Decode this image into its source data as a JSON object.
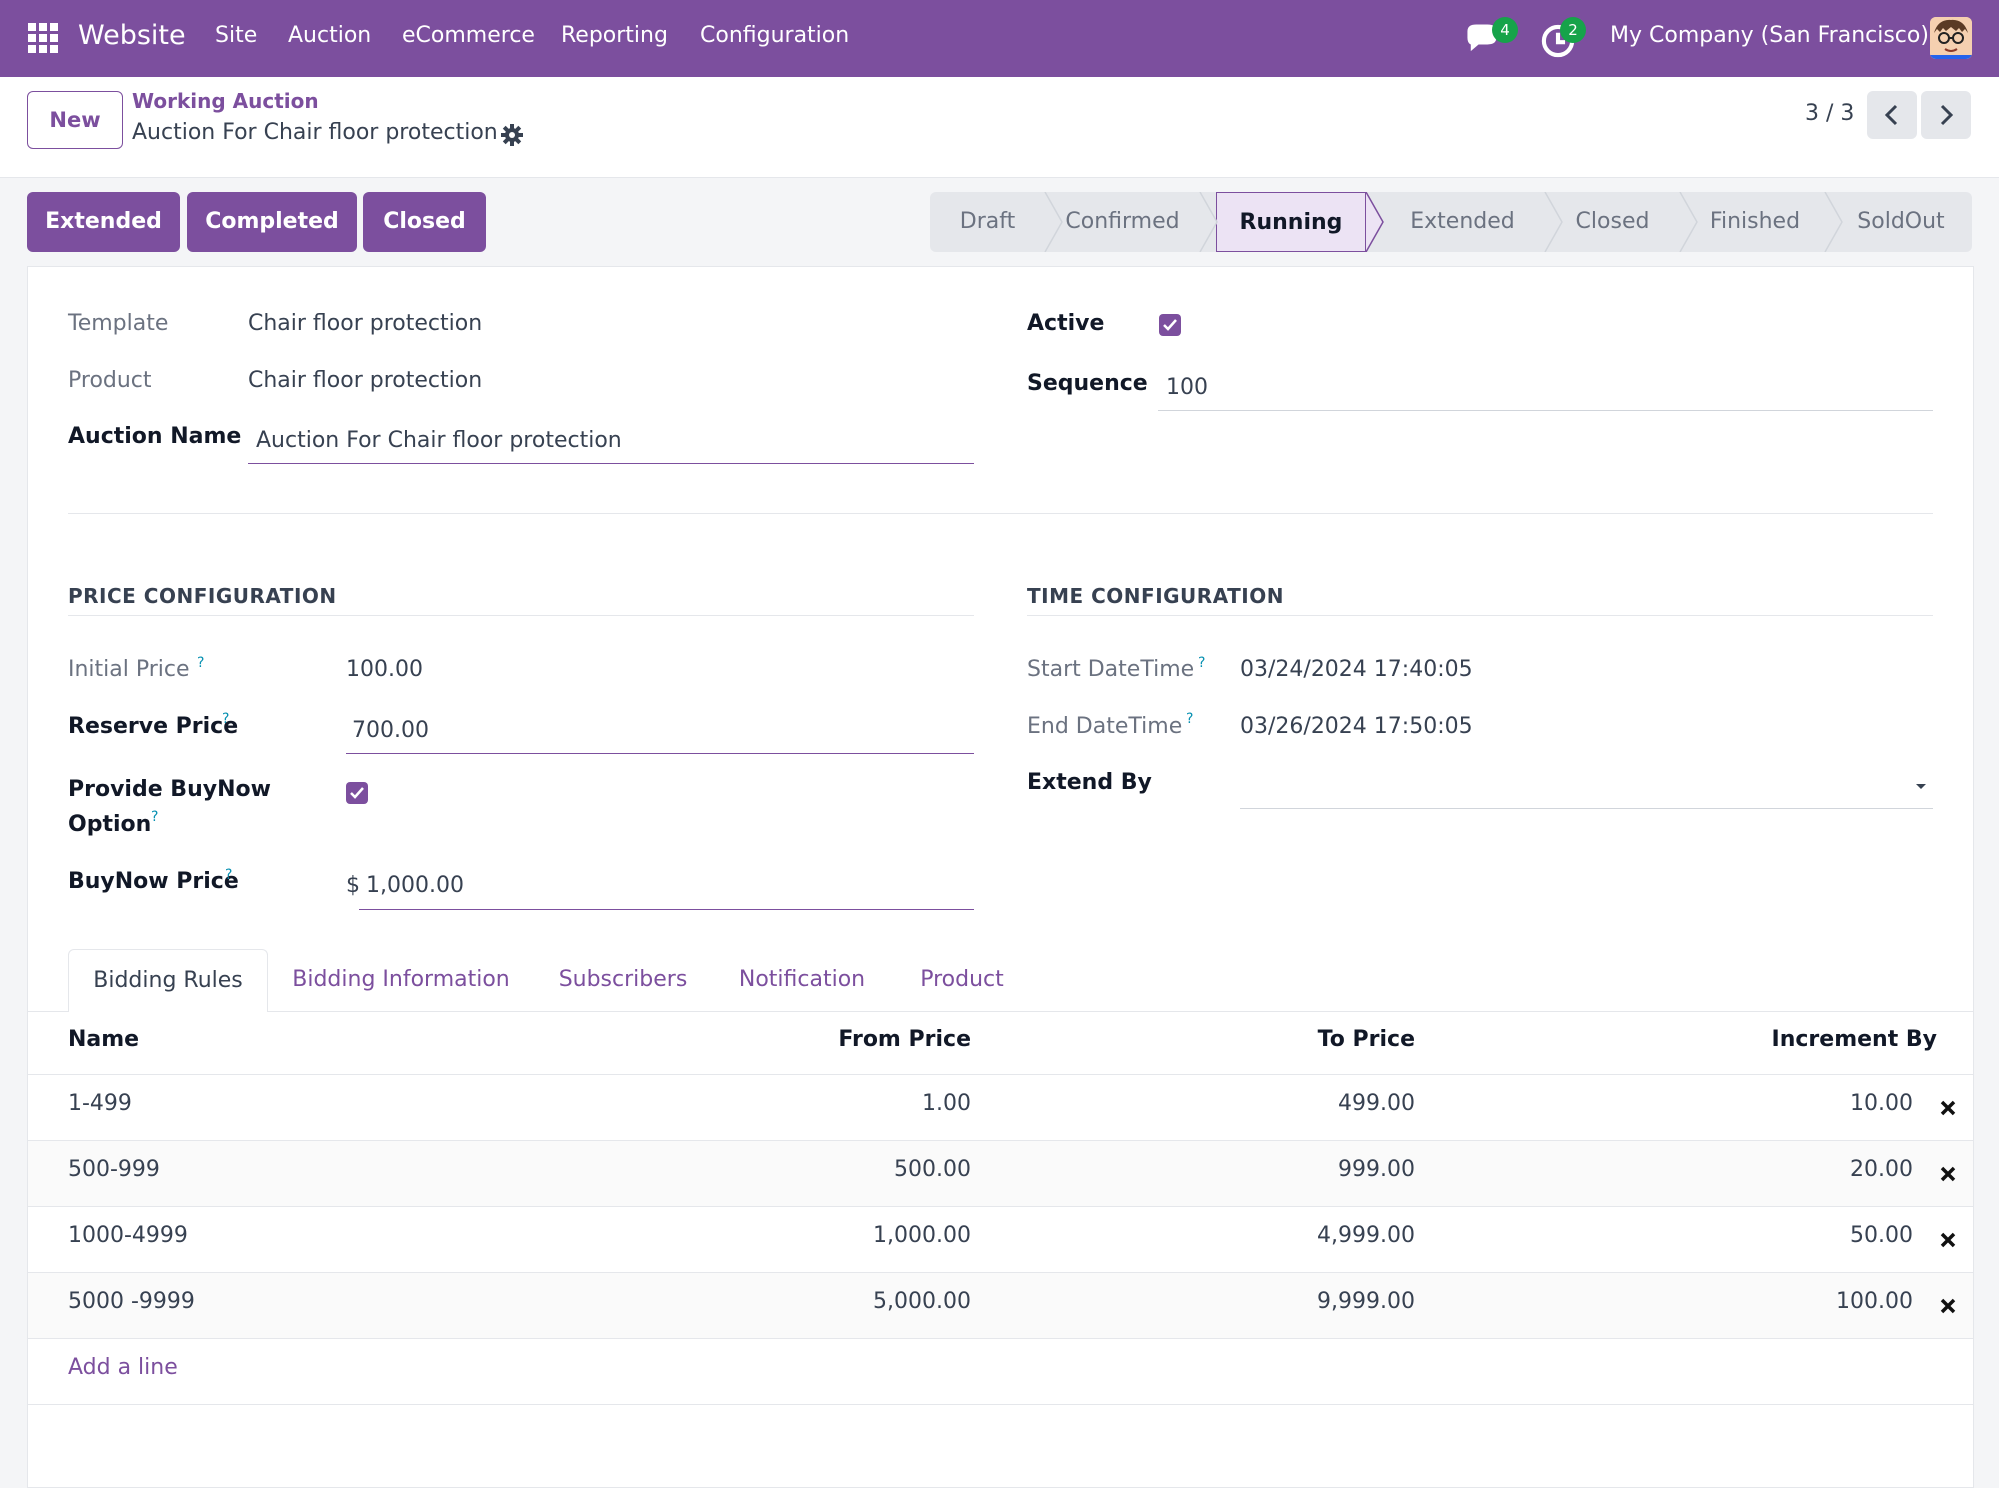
{
  "navbar": {
    "app_name": "Website",
    "menu": [
      "Site",
      "Auction",
      "eCommerce",
      "Reporting",
      "Configuration"
    ],
    "messages_count": "4",
    "activities_count": "2",
    "company": "My Company (San Francisco)"
  },
  "control": {
    "new_label": "New",
    "breadcrumb_parent": "Working Auction",
    "breadcrumb_current": "Auction For Chair floor protection",
    "pager": "3 / 3"
  },
  "actions": [
    "Extended",
    "Completed",
    "Closed"
  ],
  "status": {
    "stages": [
      "Draft",
      "Confirmed",
      "Running",
      "Extended",
      "Closed",
      "Finished",
      "SoldOut"
    ],
    "active": "Running"
  },
  "form": {
    "template_label": "Template",
    "template_value": "Chair floor protection",
    "product_label": "Product",
    "product_value": "Chair floor protection",
    "auction_name_label": "Auction Name",
    "auction_name_value": "Auction For Chair floor protection",
    "active_label": "Active",
    "sequence_label": "Sequence",
    "sequence_value": "100"
  },
  "price": {
    "title": "PRICE CONFIGURATION",
    "initial_label": "Initial Price",
    "initial_value": "100.00",
    "reserve_label": "Reserve Price",
    "reserve_value": "700.00",
    "buynow_option_label_1": "Provide BuyNow",
    "buynow_option_label_2": "Option",
    "buynow_price_label": "BuyNow Price",
    "currency": "$",
    "buynow_price_value": "1,000.00"
  },
  "time": {
    "title": "TIME CONFIGURATION",
    "start_label": "Start DateTime",
    "start_value": "03/24/2024 17:40:05",
    "end_label": "End DateTime",
    "end_value": "03/26/2024 17:50:05",
    "extend_label": "Extend By"
  },
  "help_mark": "?",
  "tabs": [
    "Bidding Rules",
    "Bidding Information",
    "Subscribers",
    "Notification",
    "Product"
  ],
  "table": {
    "headers": [
      "Name",
      "From Price",
      "To Price",
      "Increment By"
    ],
    "rows": [
      [
        "1-499",
        "1.00",
        "499.00",
        "10.00"
      ],
      [
        "500-999",
        "500.00",
        "999.00",
        "20.00"
      ],
      [
        "1000-4999",
        "1,000.00",
        "4,999.00",
        "50.00"
      ],
      [
        "5000 -9999",
        "5,000.00",
        "9,999.00",
        "100.00"
      ]
    ],
    "add_line": "Add a line"
  },
  "colors": {
    "brand": "#7c4f9e",
    "badge": "#16a34a"
  },
  "icons": [
    "apps-grid-icon",
    "chat-icon",
    "clock-icon",
    "gear-icon",
    "chevron-left-icon",
    "chevron-right-icon",
    "checkbox-checked-icon",
    "dropdown-caret-icon",
    "delete-x-icon"
  ]
}
